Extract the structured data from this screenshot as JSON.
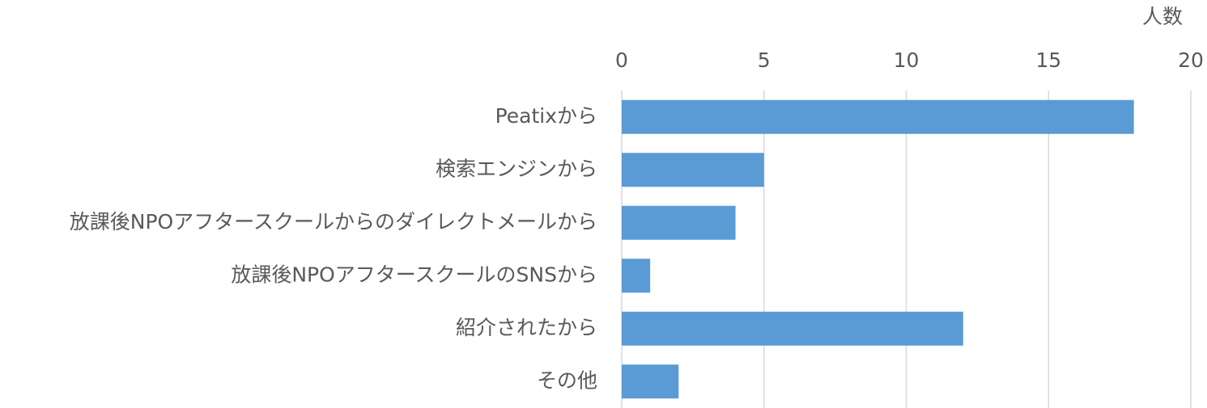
{
  "chart_data": {
    "type": "bar",
    "orientation": "horizontal",
    "x_axis_label": "人数",
    "categories": [
      "Peatixから",
      "検索エンジンから",
      "放課後NPOアフタースクールからのダイレクトメールから",
      "放課後NPOアフタースクールのSNSから",
      "紹介されたから",
      "その他"
    ],
    "values": [
      18,
      5,
      4,
      1,
      12,
      2
    ],
    "color": "#5b9bd5",
    "xlim": [
      0,
      20
    ],
    "xticks": [
      0,
      5,
      10,
      15,
      20
    ],
    "grid": true
  }
}
